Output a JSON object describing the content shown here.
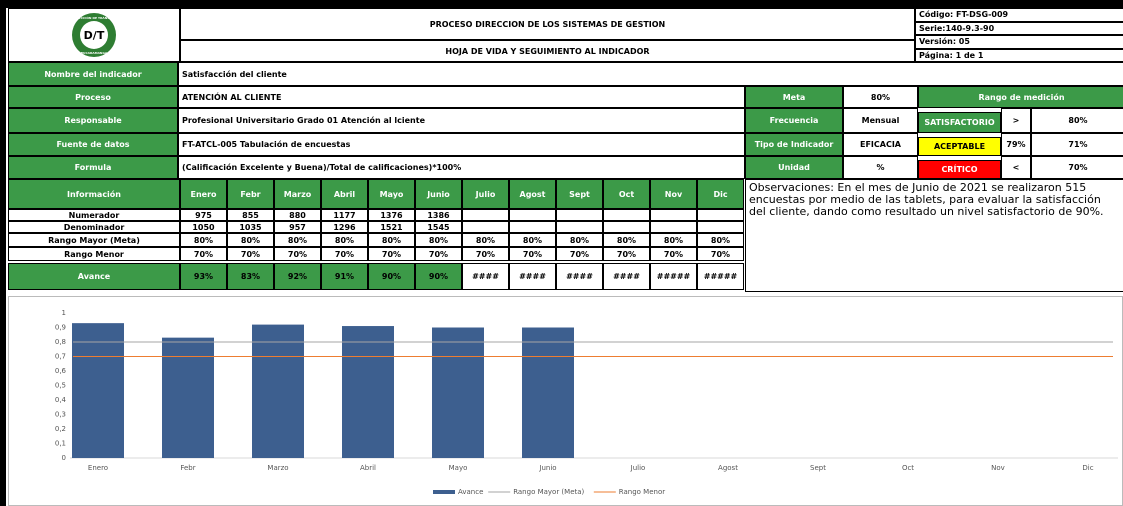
{
  "header": {
    "logo": {
      "top": "DIRECCIÓN DE TRÁNSITO",
      "mark": "D/T",
      "bottom": "BUCARAMANGA"
    },
    "title": "PROCESO DIRECCION DE LOS SISTEMAS DE GESTION",
    "subtitle": "HOJA DE VIDA Y SEGUIMIENTO AL INDICADOR",
    "codes": [
      "Código: FT-DSG-009",
      "Serie:140-9.3-90",
      "Versión: 05",
      "Página: 1 de 1"
    ]
  },
  "info": {
    "rows": [
      {
        "label": "Nombre del indicador",
        "value": "Satisfacción del cliente"
      },
      {
        "label": "Proceso",
        "value": "ATENCIÓN AL CLIENTE",
        "side_label": "Meta",
        "side_value": "80%"
      },
      {
        "label": "Responsable",
        "value": "Profesional Universitario Grado 01 Atención al lciente",
        "side_label": "Frecuencia",
        "side_value": "Mensual"
      },
      {
        "label": "Fuente de datos",
        "value": "FT-ATCL-005 Tabulación de encuestas",
        "side_label": "Tipo de Indicador",
        "side_value": "EFICACIA"
      },
      {
        "label": "Formula",
        "value": "(Calificación Excelente y Buena)/Total de calificaciones)*100%",
        "side_label": "Unidad",
        "side_value": "%"
      }
    ],
    "rango": {
      "title": "Rango de medición",
      "rows": [
        [
          "SATISFACTORIO",
          ">",
          "80%"
        ],
        [
          "ACEPTABLE",
          "79%",
          "71%"
        ],
        [
          "CRÍTICO",
          "<",
          "70%"
        ]
      ]
    }
  },
  "table": {
    "header": "Información",
    "months": [
      "Enero",
      "Febr",
      "Marzo",
      "Abril",
      "Mayo",
      "Junio",
      "Julio",
      "Agost",
      "Sept",
      "Oct",
      "Nov",
      "Dic"
    ],
    "rows": [
      {
        "label": "Numerador",
        "cells": [
          "975",
          "855",
          "880",
          "1177",
          "1376",
          "1386"
        ]
      },
      {
        "label": "Denominador",
        "cells": [
          "1050",
          "1035",
          "957",
          "1296",
          "1521",
          "1545"
        ]
      },
      {
        "label": "Rango Mayor (Meta)",
        "cells": [
          "80%",
          "80%",
          "80%",
          "80%",
          "80%",
          "80%",
          "80%",
          "80%",
          "80%",
          "80%",
          "80%",
          "80%"
        ]
      },
      {
        "label": "Rango Menor",
        "cells": [
          "70%",
          "70%",
          "70%",
          "70%",
          "70%",
          "70%",
          "70%",
          "70%",
          "70%",
          "70%",
          "70%",
          "70%"
        ]
      },
      {
        "label": "Avance",
        "cells": [
          "93%",
          "83%",
          "92%",
          "91%",
          "90%",
          "90%",
          "####",
          "####",
          "####",
          "####",
          "#####",
          "#####"
        ]
      }
    ],
    "observaciones": "Observaciones: En el mes de Junio de 2021 se realizaron 515 encuestas por medio de las tablets, para evaluar la satisfacción del cliente, dando como resultado un nivel satisfactorio de 90%."
  },
  "chart": {
    "type": "bar",
    "categories": [
      "Enero",
      "Febr",
      "Marzo",
      "Abril",
      "Mayo",
      "Junio",
      "Julio",
      "Agost",
      "Sept",
      "Oct",
      "Nov",
      "Dic"
    ],
    "series": [
      {
        "name": "Avance",
        "type": "bar",
        "color": "#3d5f8f",
        "values": [
          0.93,
          0.83,
          0.92,
          0.91,
          0.9,
          0.9,
          null,
          null,
          null,
          null,
          null,
          null
        ]
      },
      {
        "name": "Rango Mayor (Meta)",
        "type": "line",
        "color": "#a6a6a6",
        "values": [
          0.8,
          0.8,
          0.8,
          0.8,
          0.8,
          0.8,
          0.8,
          0.8,
          0.8,
          0.8,
          0.8,
          0.8
        ]
      },
      {
        "name": "Rango Menor",
        "type": "line",
        "color": "#ed7d31",
        "values": [
          0.7,
          0.7,
          0.7,
          0.7,
          0.7,
          0.7,
          0.7,
          0.7,
          0.7,
          0.7,
          0.7,
          0.7
        ]
      }
    ],
    "ylim": [
      0,
      1
    ],
    "yticks": [
      0,
      {
        "value": 0.1,
        "label": "0,1"
      },
      {
        "value": 0.2,
        "label": "0,2"
      },
      {
        "value": 0.3,
        "label": "0,3"
      },
      {
        "value": 0.4,
        "label": "0,4"
      },
      {
        "value": 0.5,
        "label": "0,5"
      },
      {
        "value": 0.6,
        "label": "0,6"
      },
      {
        "value": 0.7,
        "label": "0,7"
      },
      {
        "value": 0.8,
        "label": "0,8"
      },
      {
        "value": 0.9,
        "label": "0,9"
      },
      1
    ]
  }
}
